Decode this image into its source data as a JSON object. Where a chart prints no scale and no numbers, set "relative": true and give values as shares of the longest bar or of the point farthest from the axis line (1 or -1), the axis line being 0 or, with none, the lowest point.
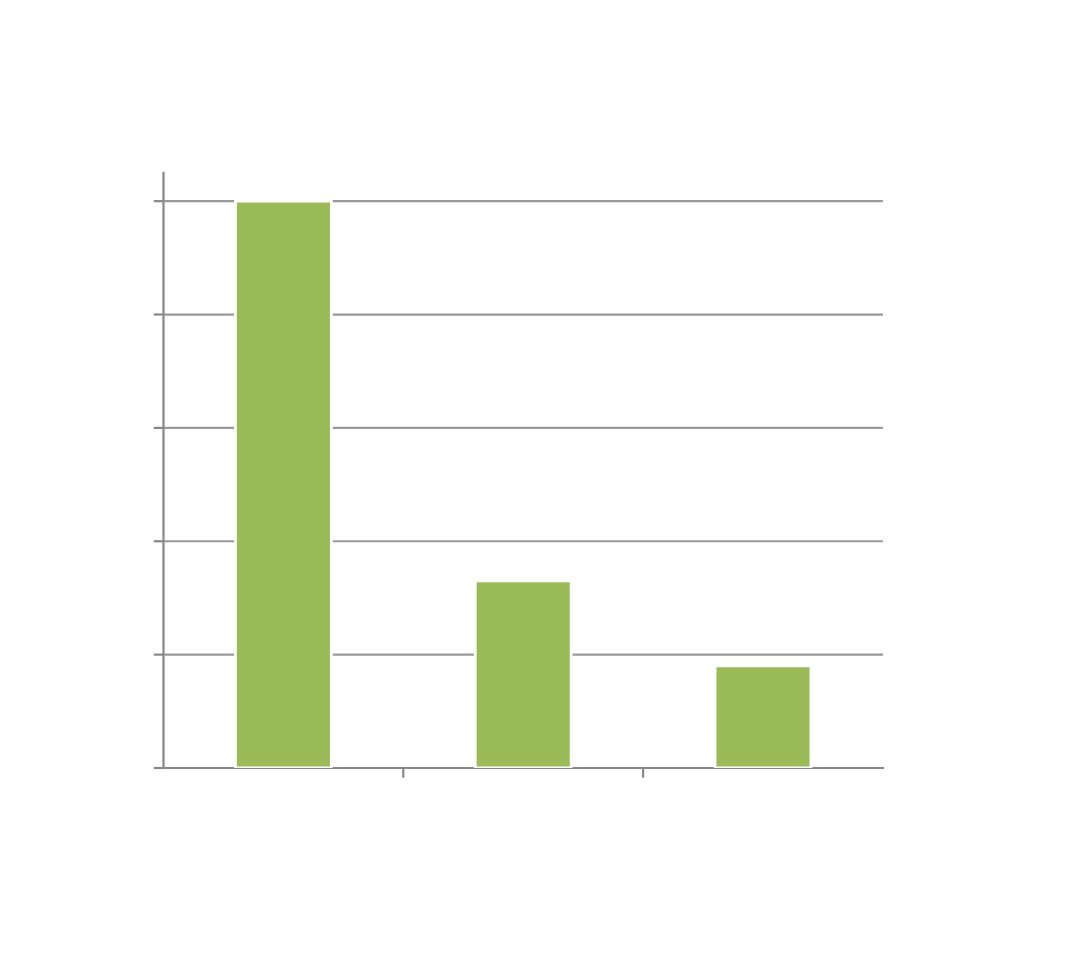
{
  "chart_data": {
    "type": "bar",
    "relative": true,
    "categories": [
      null,
      null,
      null
    ],
    "values": [
      1,
      0.33,
      0.18
    ],
    "color": "#9bbb59",
    "grid": "y"
  }
}
